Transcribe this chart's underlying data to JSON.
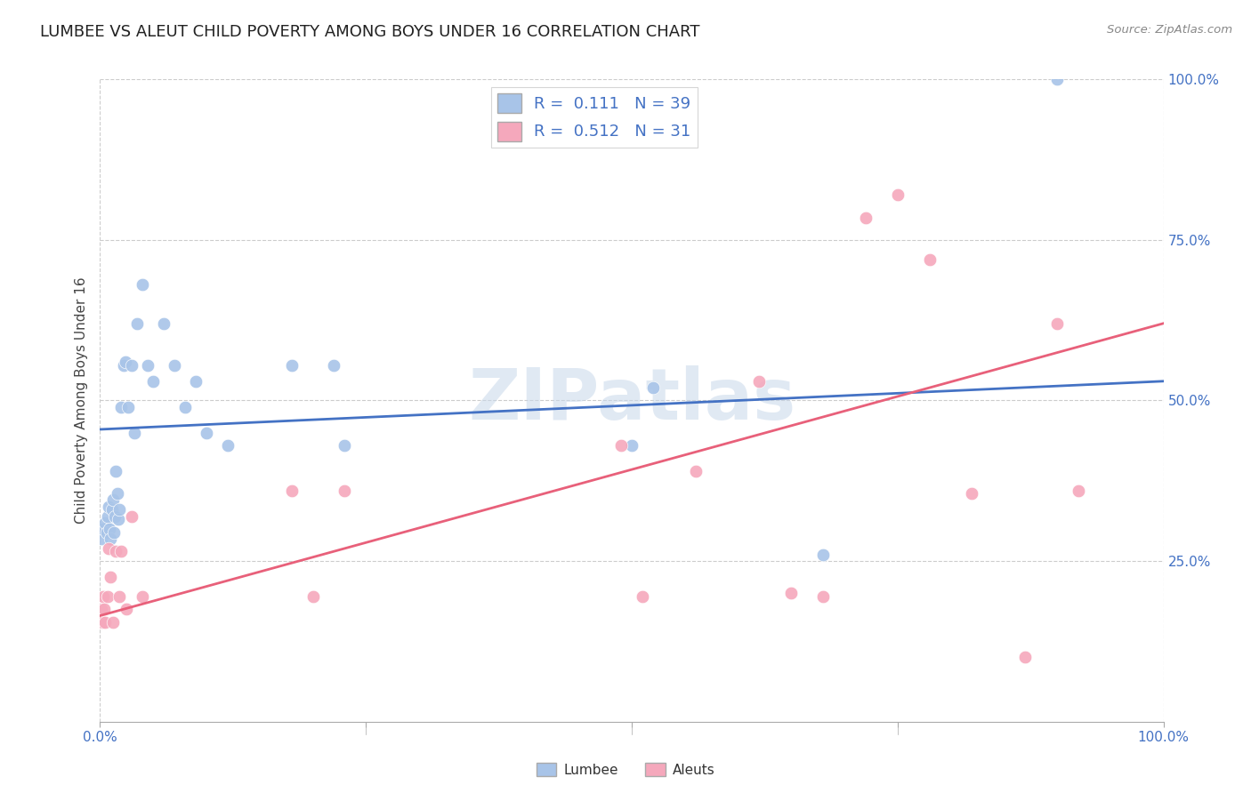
{
  "title": "LUMBEE VS ALEUT CHILD POVERTY AMONG BOYS UNDER 16 CORRELATION CHART",
  "source": "Source: ZipAtlas.com",
  "ylabel": "Child Poverty Among Boys Under 16",
  "lumbee_R": 0.111,
  "lumbee_N": 39,
  "aleut_R": 0.512,
  "aleut_N": 31,
  "lumbee_color": "#a8c4e8",
  "aleut_color": "#f5a8bc",
  "lumbee_line_color": "#4472c4",
  "aleut_line_color": "#e8607a",
  "watermark": "ZIPatlas",
  "lumbee_x": [
    0.001,
    0.003,
    0.005,
    0.006,
    0.007,
    0.008,
    0.009,
    0.01,
    0.011,
    0.012,
    0.013,
    0.014,
    0.015,
    0.016,
    0.017,
    0.018,
    0.02,
    0.022,
    0.024,
    0.026,
    0.03,
    0.032,
    0.035,
    0.04,
    0.045,
    0.05,
    0.06,
    0.07,
    0.08,
    0.09,
    0.1,
    0.12,
    0.18,
    0.22,
    0.23,
    0.5,
    0.52,
    0.68,
    0.9
  ],
  "lumbee_y": [
    0.285,
    0.3,
    0.31,
    0.295,
    0.32,
    0.335,
    0.3,
    0.285,
    0.33,
    0.345,
    0.295,
    0.32,
    0.39,
    0.355,
    0.315,
    0.33,
    0.49,
    0.555,
    0.56,
    0.49,
    0.555,
    0.45,
    0.62,
    0.68,
    0.555,
    0.53,
    0.62,
    0.555,
    0.49,
    0.53,
    0.45,
    0.43,
    0.555,
    0.555,
    0.43,
    0.43,
    0.52,
    0.26,
    1.0
  ],
  "aleut_x": [
    0.001,
    0.002,
    0.003,
    0.004,
    0.005,
    0.007,
    0.008,
    0.01,
    0.012,
    0.015,
    0.018,
    0.02,
    0.025,
    0.03,
    0.04,
    0.18,
    0.2,
    0.23,
    0.49,
    0.51,
    0.56,
    0.62,
    0.65,
    0.68,
    0.72,
    0.75,
    0.78,
    0.82,
    0.87,
    0.9,
    0.92
  ],
  "aleut_y": [
    0.175,
    0.155,
    0.195,
    0.175,
    0.155,
    0.195,
    0.27,
    0.225,
    0.155,
    0.265,
    0.195,
    0.265,
    0.175,
    0.32,
    0.195,
    0.36,
    0.195,
    0.36,
    0.43,
    0.195,
    0.39,
    0.53,
    0.2,
    0.195,
    0.785,
    0.82,
    0.72,
    0.355,
    0.1,
    0.62,
    0.36
  ],
  "xlim": [
    0.0,
    1.0
  ],
  "ylim": [
    0.0,
    1.0
  ],
  "background_color": "#ffffff",
  "grid_color": "#cccccc",
  "title_fontsize": 13,
  "tick_color": "#4472c4",
  "marker_size": 110,
  "lumbee_line_intercept": 0.455,
  "lumbee_line_slope": 0.075,
  "aleut_line_intercept": 0.165,
  "aleut_line_slope": 0.455
}
